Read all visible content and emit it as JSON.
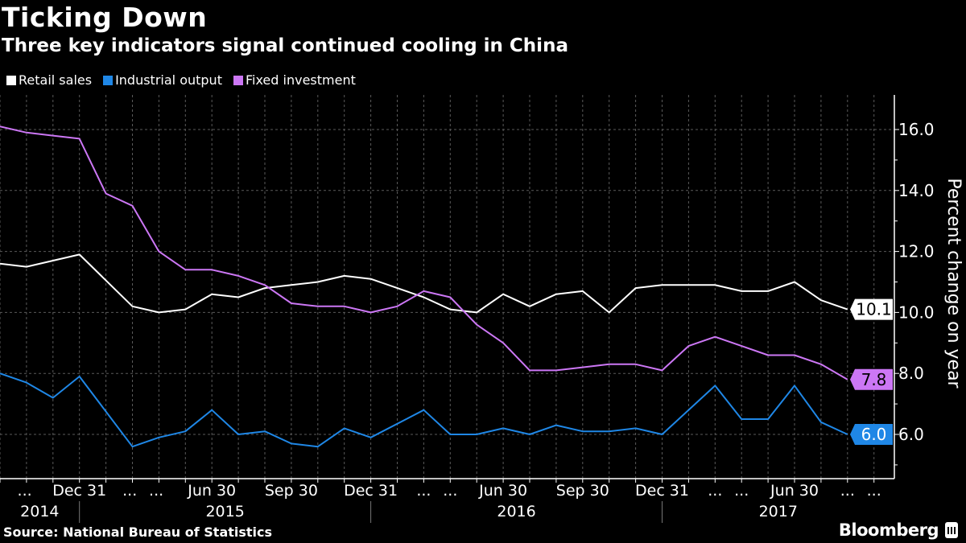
{
  "header": {
    "title": "Ticking Down",
    "subtitle": "Three key indicators signal continued cooling in China"
  },
  "footer": {
    "source": "Source: National Bureau of Statistics",
    "logo": "Bloomberg"
  },
  "chart_data": {
    "type": "line",
    "title": "Ticking Down",
    "subtitle": "Three key indicators signal continued cooling in China",
    "ylabel": "Percent change on year",
    "xlabel": "",
    "ylim": [
      4.5,
      17.1
    ],
    "y_ticks": [
      "16.0",
      "14.0",
      "12.0",
      "10.0",
      "8.0",
      "6.0"
    ],
    "y_tick_values": [
      16,
      14,
      12,
      10,
      8,
      6
    ],
    "y_axis_position": "right",
    "grid": true,
    "legend_position": "top-left",
    "x": [
      "2014-09-30",
      "2014-10-31",
      "2014-11-30",
      "2014-12-31",
      "2015-02-28",
      "2015-03-31",
      "2015-04-30",
      "2015-05-31",
      "2015-06-30",
      "2015-07-31",
      "2015-08-31",
      "2015-09-30",
      "2015-10-31",
      "2015-11-30",
      "2015-12-31",
      "2016-02-29",
      "2016-03-31",
      "2016-04-30",
      "2016-05-31",
      "2016-06-30",
      "2016-07-31",
      "2016-08-31",
      "2016-09-30",
      "2016-10-31",
      "2016-11-30",
      "2016-12-31",
      "2017-02-28",
      "2017-03-31",
      "2017-04-30",
      "2017-05-31",
      "2017-06-30",
      "2017-07-31",
      "2017-08-31"
    ],
    "x_tick_labels": [
      "...",
      "Dec 31",
      "...",
      "...",
      "Jun 30",
      "Sep 30",
      "Dec 31",
      "...",
      "...",
      "Jun 30",
      "Sep 30",
      "Dec 31",
      "...",
      "...",
      "Jun 30",
      "...",
      "..."
    ],
    "year_labels": [
      "2014",
      "2015",
      "2016",
      "2017"
    ],
    "series": [
      {
        "name": "Retail sales",
        "color": "#ffffff",
        "last_label": "10.1",
        "values": [
          11.6,
          11.5,
          11.7,
          11.9,
          null,
          10.2,
          10.0,
          10.1,
          10.6,
          10.5,
          10.8,
          10.9,
          11.0,
          11.2,
          11.1,
          null,
          10.5,
          10.1,
          10.0,
          10.6,
          10.2,
          10.6,
          10.7,
          10.0,
          10.8,
          10.9,
          null,
          10.9,
          10.7,
          10.7,
          11.0,
          10.4,
          10.1
        ]
      },
      {
        "name": "Industrial output",
        "color": "#1f87e6",
        "last_label": "6.0",
        "values": [
          8.0,
          7.7,
          7.2,
          7.9,
          null,
          5.6,
          5.9,
          6.1,
          6.8,
          6.0,
          6.1,
          5.7,
          5.6,
          6.2,
          5.9,
          null,
          6.8,
          6.0,
          6.0,
          6.2,
          6.0,
          6.3,
          6.1,
          6.1,
          6.2,
          6.0,
          null,
          7.6,
          6.5,
          6.5,
          7.6,
          6.4,
          6.0
        ]
      },
      {
        "name": "Fixed investment",
        "color": "#cc77f5",
        "last_label": "7.8",
        "values": [
          16.1,
          15.9,
          15.8,
          15.7,
          13.9,
          13.5,
          12.0,
          11.4,
          11.4,
          11.2,
          10.9,
          10.3,
          10.2,
          10.2,
          10.0,
          10.2,
          10.7,
          10.5,
          9.6,
          9.0,
          8.1,
          8.1,
          8.2,
          8.3,
          8.3,
          8.1,
          8.9,
          9.2,
          8.9,
          8.6,
          8.6,
          8.3,
          7.8
        ]
      }
    ]
  }
}
